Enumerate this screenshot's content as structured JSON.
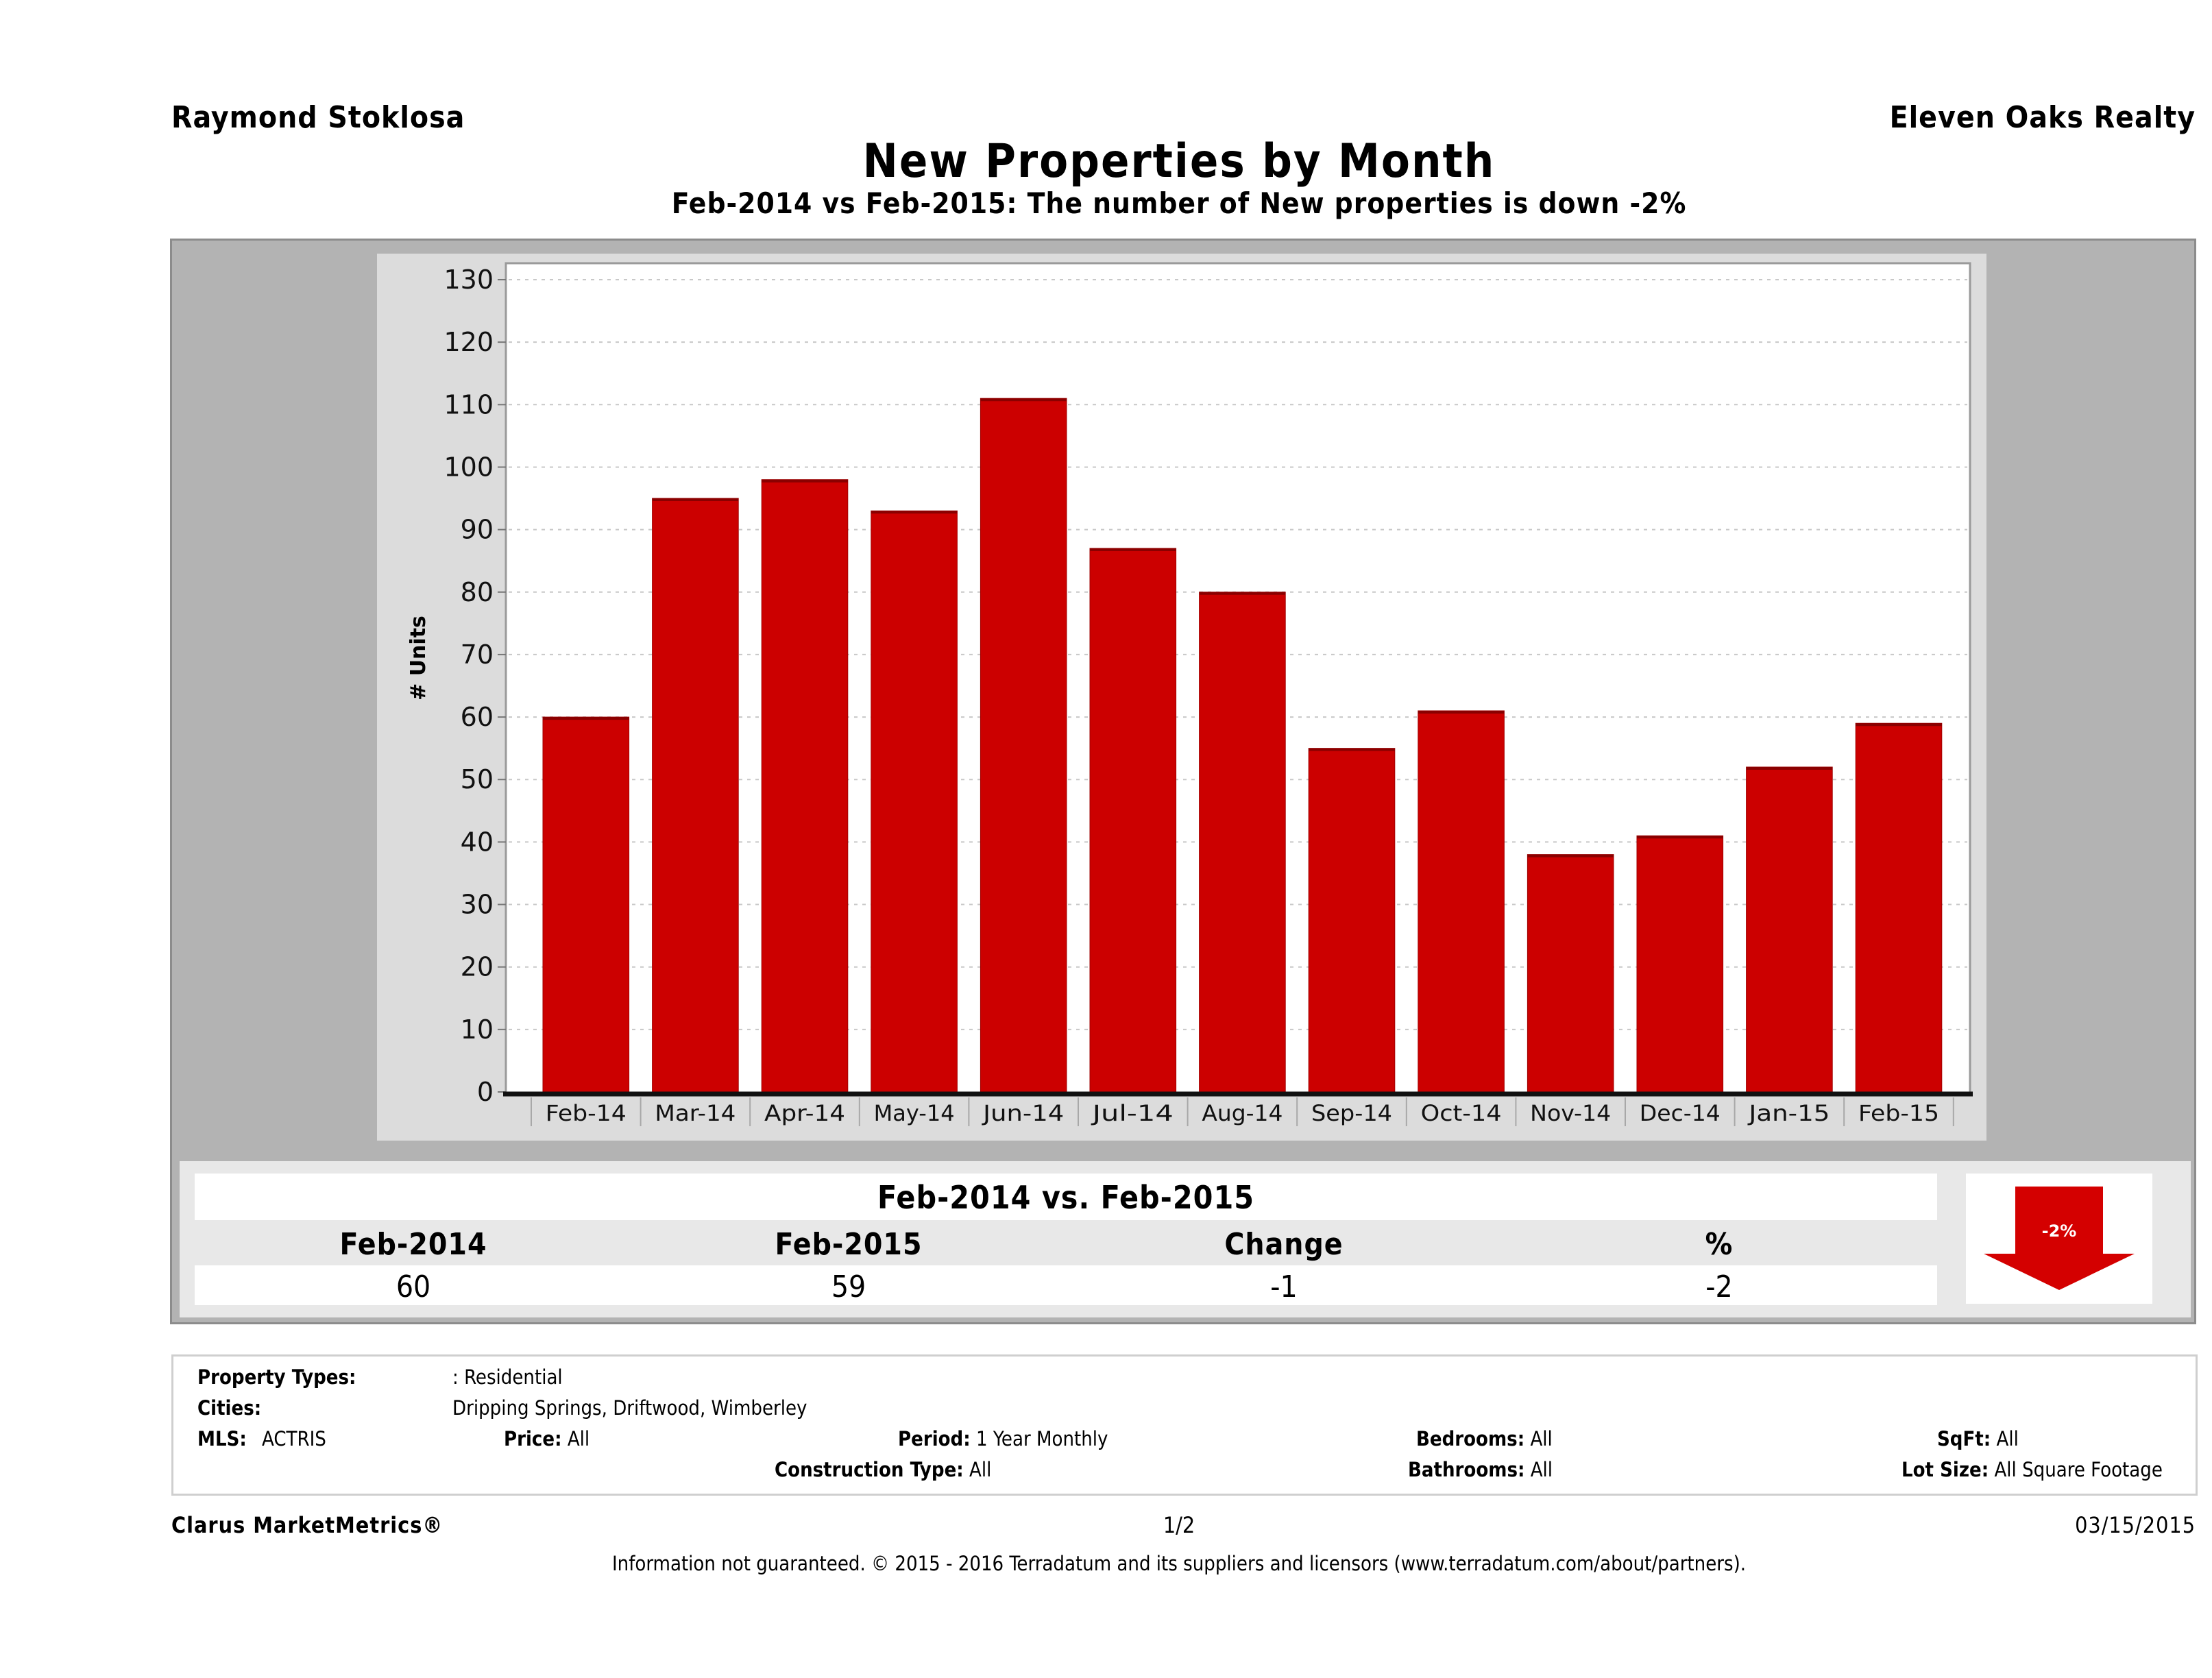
{
  "header": {
    "agent_name": "Raymond Stoklosa",
    "company": "Eleven Oaks Realty",
    "title": "New Properties by Month",
    "subtitle": "Feb-2014 vs Feb-2015: The number of New  properties is down -2%"
  },
  "chart_data": {
    "type": "bar",
    "title": "New Properties by Month",
    "xlabel": "",
    "ylabel": "# Units",
    "categories": [
      "Feb-14",
      "Mar-14",
      "Apr-14",
      "May-14",
      "Jun-14",
      "Jul-14",
      "Aug-14",
      "Sep-14",
      "Oct-14",
      "Nov-14",
      "Dec-14",
      "Jan-15",
      "Feb-15"
    ],
    "values": [
      60,
      95,
      98,
      93,
      111,
      87,
      80,
      55,
      61,
      38,
      41,
      52,
      59
    ],
    "ylim": [
      0,
      130
    ],
    "yticks": [
      "0",
      "10",
      "20",
      "30",
      "40",
      "50",
      "60",
      "70",
      "80",
      "90",
      "100",
      "110",
      "120",
      "130"
    ],
    "grid": true,
    "legend": "none",
    "bar_color": "#cc0000"
  },
  "summary": {
    "title": "Feb-2014 vs. Feb-2015",
    "headers": [
      "Feb-2014",
      "Feb-2015",
      "Change",
      "%"
    ],
    "values": [
      "60",
      "59",
      "-1",
      "-2"
    ],
    "indicator": {
      "label": "-2%",
      "direction": "down",
      "icon": "down-arrow-icon",
      "color": "#d40000"
    }
  },
  "filters": {
    "property_types_label": "Property Types:",
    "property_types_value": ": Residential",
    "cities_label": "Cities:",
    "cities_value": "Dripping Springs, Driftwood, Wimberley",
    "mls_label": "MLS:",
    "mls_value": "ACTRIS",
    "price_label": "Price:",
    "price_value": "All",
    "period_label": "Period:",
    "period_value": "1 Year Monthly",
    "construction_label": "Construction Type:",
    "construction_value": "All",
    "bedrooms_label": "Bedrooms:",
    "bedrooms_value": "All",
    "bathrooms_label": "Bathrooms:",
    "bathrooms_value": "All",
    "sqft_label": "SqFt:",
    "sqft_value": "All",
    "lotsize_label": "Lot Size:",
    "lotsize_value": "All Square Footage"
  },
  "footer": {
    "brand": "Clarus MarketMetrics®",
    "page": "1/2",
    "date": "03/15/2015",
    "disclaimer": "Information not guaranteed. © 2015 - 2016 Terradatum and its suppliers and licensors (www.terradatum.com/about/partners)."
  }
}
